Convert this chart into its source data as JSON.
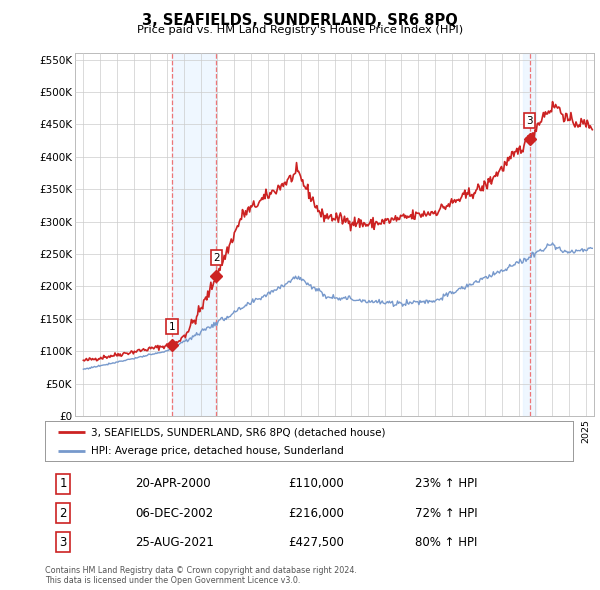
{
  "title": "3, SEAFIELDS, SUNDERLAND, SR6 8PQ",
  "subtitle": "Price paid vs. HM Land Registry's House Price Index (HPI)",
  "ylabel_ticks": [
    "£0",
    "£50K",
    "£100K",
    "£150K",
    "£200K",
    "£250K",
    "£300K",
    "£350K",
    "£400K",
    "£450K",
    "£500K",
    "£550K"
  ],
  "ytick_values": [
    0,
    50000,
    100000,
    150000,
    200000,
    250000,
    300000,
    350000,
    400000,
    450000,
    500000,
    550000
  ],
  "ylim": [
    0,
    560000
  ],
  "sale_dates": [
    2000.31,
    2002.95,
    2021.65
  ],
  "sale_prices": [
    110000,
    216000,
    427500
  ],
  "sale_labels": [
    "1",
    "2",
    "3"
  ],
  "vline_dates": [
    2000.31,
    2002.95,
    2021.65
  ],
  "red_line_color": "#cc2222",
  "blue_line_color": "#7799cc",
  "background_color": "#ffffff",
  "grid_color": "#cccccc",
  "shade_color": "#ddeeff",
  "legend_label_red": "3, SEAFIELDS, SUNDERLAND, SR6 8PQ (detached house)",
  "legend_label_blue": "HPI: Average price, detached house, Sunderland",
  "table_rows": [
    [
      "1",
      "20-APR-2000",
      "£110,000",
      "23% ↑ HPI"
    ],
    [
      "2",
      "06-DEC-2002",
      "£216,000",
      "72% ↑ HPI"
    ],
    [
      "3",
      "25-AUG-2021",
      "£427,500",
      "80% ↑ HPI"
    ]
  ],
  "footnote": "Contains HM Land Registry data © Crown copyright and database right 2024.\nThis data is licensed under the Open Government Licence v3.0.",
  "xmin": 1994.5,
  "xmax": 2025.5
}
